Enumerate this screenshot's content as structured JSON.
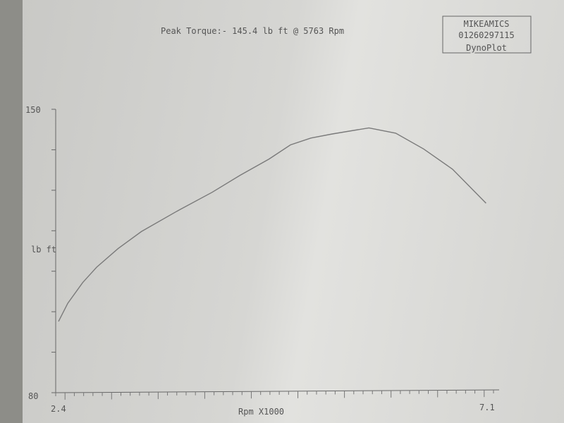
{
  "header": {
    "peak_text": "Peak Torque:- 145.4 lb ft @  5763 Rpm",
    "stamp": {
      "line1": "MIKEAMICS",
      "line2": "01260297115",
      "line3": "DynoPlot"
    }
  },
  "chart_data": {
    "type": "line",
    "title": "Peak Torque:- 145.4 lb ft @  5763 Rpm",
    "xlabel": "Rpm X1000",
    "ylabel": "lb ft",
    "xlim": [
      2.4,
      7.1
    ],
    "ylim": [
      80,
      150
    ],
    "x_tick_labels": [
      "2.4",
      "7.1"
    ],
    "y_tick_labels": [
      "80",
      "150"
    ],
    "y_tick_step": 10,
    "grid": false,
    "line_color": "#7a7a7a",
    "series": [
      {
        "x": [
          2.43,
          2.53,
          2.69,
          2.84,
          3.07,
          3.32,
          3.7,
          4.08,
          4.38,
          4.69,
          4.92,
          5.14,
          5.37,
          5.763,
          6.05,
          6.35,
          6.66,
          7.02
        ],
        "y": [
          97.6,
          102.1,
          107.2,
          111.0,
          115.6,
          119.8,
          124.8,
          129.5,
          133.7,
          137.7,
          141.2,
          142.9,
          143.9,
          145.4,
          144.1,
          140.2,
          135.2,
          126.8
        ]
      }
    ]
  }
}
